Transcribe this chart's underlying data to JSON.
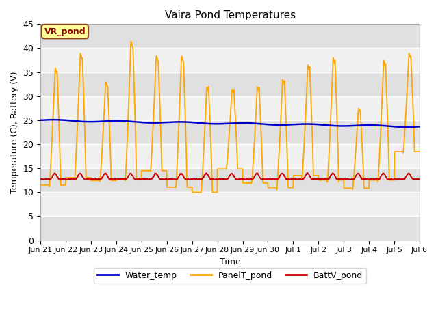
{
  "title": "Vaira Pond Temperatures",
  "xlabel": "Time",
  "ylabel": "Temperature (C), Battery (V)",
  "xlim_days": [
    0,
    15
  ],
  "ylim": [
    0,
    45
  ],
  "yticks": [
    0,
    5,
    10,
    15,
    20,
    25,
    30,
    35,
    40,
    45
  ],
  "xtick_labels": [
    "Jun 21",
    "Jun 22",
    "Jun 23",
    "Jun 24",
    "Jun 25",
    "Jun 26",
    "Jun 27",
    "Jun 28",
    "Jun 29",
    "Jun 30",
    "Jul 1",
    "Jul 2",
    "Jul 3",
    "Jul 4",
    "Jul 5",
    "Jul 6"
  ],
  "xtick_positions": [
    0,
    1,
    2,
    3,
    4,
    5,
    6,
    7,
    8,
    9,
    10,
    11,
    12,
    13,
    14,
    15
  ],
  "water_color": "#0000cc",
  "panel_color": "#ffa500",
  "batt_color": "#cc0000",
  "water_lw": 1.8,
  "panel_lw": 1.3,
  "batt_lw": 1.3,
  "annotation_text": "VR_pond",
  "annotation_color": "#8B0000",
  "annotation_bg": "#ffff99",
  "legend_labels": [
    "Water_temp",
    "PanelT_pond",
    "BattV_pond"
  ],
  "bg_color": "#ffffff",
  "band_light": "#f0f0f0",
  "band_dark": "#e0e0e0"
}
